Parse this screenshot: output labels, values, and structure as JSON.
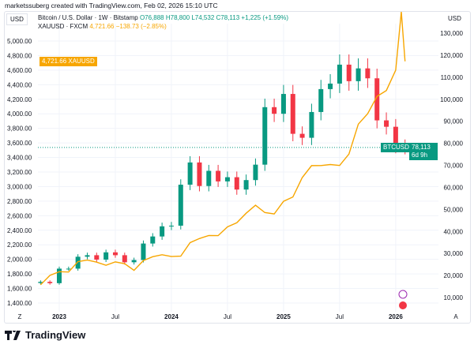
{
  "credit": "marketssuberg created with TradingView.com, Feb 02, 2026 15:10 UTC",
  "left_currency": "USD",
  "right_currency": "USD",
  "legend": {
    "btc": {
      "name": "Bitcoin / U.S. Dollar · 1W · Bitstamp",
      "o": "O76,888",
      "h": "H78,800",
      "l": "L74,532",
      "c": "C78,113",
      "chg": "+1,225 (+1.59%)"
    },
    "gold": {
      "name": "XAUUSD · FXCM",
      "price": "4,721.66",
      "chg": "−138.73 (−2.85%)"
    }
  },
  "tags": {
    "gold_price": "4,721.66",
    "gold_symbol": "XAUUSD",
    "btc_symbol": "BTCUSD",
    "btc_price": "78,113",
    "btc_countdown": "6d 9h"
  },
  "x_axis": {
    "left_btn": "Z",
    "right_btn": "A",
    "labels": [
      "2023",
      "Jul",
      "2024",
      "Jul",
      "2025",
      "Jul",
      "2026"
    ]
  },
  "logo_text": "TradingView",
  "colors": {
    "up": "#089981",
    "down": "#f23645",
    "gold": "#f7a600"
  },
  "chart_data": {
    "type": "line",
    "title": "Bitcoin / U.S. Dollar · 1W · Bitstamp vs XAUUSD · FXCM",
    "left_axis": {
      "label": "USD",
      "ticks": [
        "5,000.00",
        "4,800.00",
        "4,600.00",
        "4,400.00",
        "4,200.00",
        "4,000.00",
        "3,800.00",
        "3,600.00",
        "3,400.00",
        "3,200.00",
        "3,000.00",
        "2,800.00",
        "2,600.00",
        "2,400.00",
        "2,200.00",
        "2,000.00",
        "1,800.00",
        "1,600.00",
        "1,400.00"
      ],
      "range": [
        1400,
        5000
      ]
    },
    "right_axis": {
      "label": "USD",
      "ticks": [
        "130,000",
        "120,000",
        "110,000",
        "100,000",
        "90,000",
        "80,000",
        "70,000",
        "60,000",
        "50,000",
        "40,000",
        "30,000",
        "20,000",
        "10,000"
      ],
      "range": [
        10000,
        130000
      ]
    },
    "btc_close": [
      17100,
      16500,
      23100,
      23100,
      28500,
      29200,
      27200,
      30500,
      29200,
      26000,
      27000,
      34500,
      37700,
      42300,
      42600,
      61200,
      71300,
      60600,
      67500,
      62700,
      64600,
      59000,
      63300,
      70300,
      96400,
      93400,
      102400,
      84300,
      82500,
      94200,
      104600,
      107100,
      115700,
      108200,
      114000,
      109500,
      90400,
      87500,
      78600,
      78113
    ],
    "gold": [
      [
        0,
        1650
      ],
      [
        1,
        1780
      ],
      [
        2,
        1830
      ],
      [
        3,
        1826
      ],
      [
        4,
        1969
      ],
      [
        5,
        1990
      ],
      [
        6,
        1962
      ],
      [
        7,
        1919
      ],
      [
        8,
        1965
      ],
      [
        9,
        1940
      ],
      [
        10,
        1849
      ],
      [
        11,
        1983
      ],
      [
        12,
        2036
      ],
      [
        13,
        2063
      ],
      [
        14,
        2039
      ],
      [
        15,
        2044
      ],
      [
        16,
        2230
      ],
      [
        17,
        2286
      ],
      [
        18,
        2327
      ],
      [
        19,
        2326
      ],
      [
        20,
        2447
      ],
      [
        21,
        2503
      ],
      [
        22,
        2634
      ],
      [
        23,
        2744
      ],
      [
        24,
        2643
      ],
      [
        25,
        2624
      ],
      [
        26,
        2798
      ],
      [
        27,
        2857
      ],
      [
        28,
        3124
      ],
      [
        29,
        3288
      ],
      [
        30,
        3289
      ],
      [
        31,
        3303
      ],
      [
        32,
        3290
      ],
      [
        33,
        3448
      ],
      [
        34,
        3858
      ],
      [
        35,
        4002
      ],
      [
        36,
        4239
      ],
      [
        37,
        4320
      ],
      [
        38,
        4600
      ],
      [
        38.6,
        5400
      ],
      [
        39,
        4721.66
      ]
    ]
  }
}
